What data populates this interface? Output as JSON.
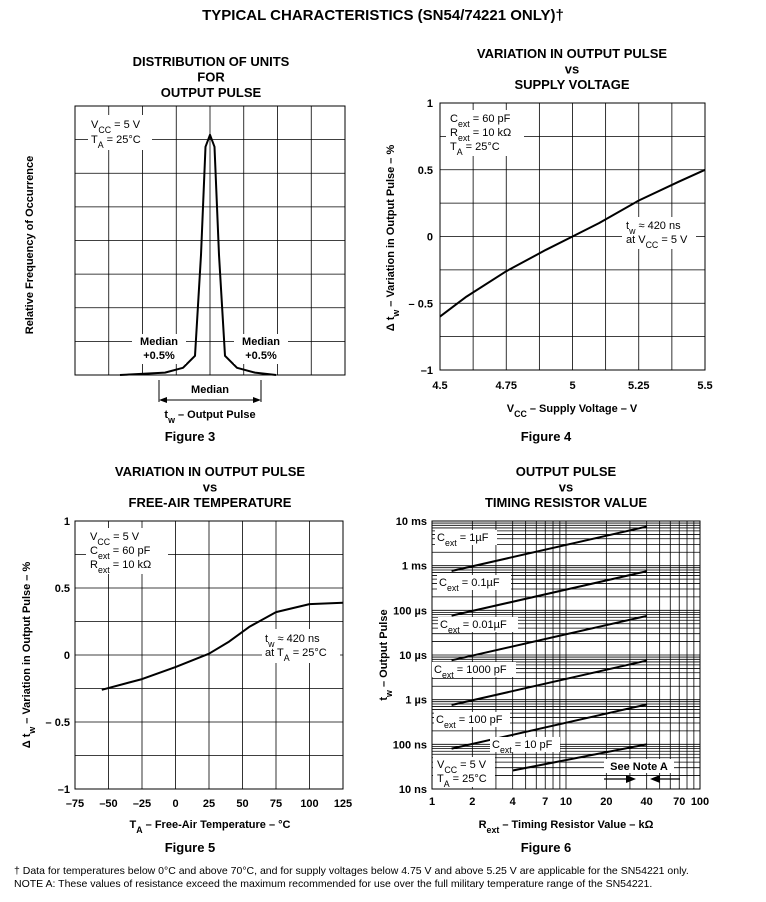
{
  "page": {
    "title": "TYPICAL CHARACTERISTICS (SN54/74221 ONLY)†",
    "footnote_dagger": "† Data for temperatures below 0°C and above 70°C, and for supply voltages below 4.75 V and above 5.25 V are applicable for the SN54221 only.",
    "note_a": "NOTE A:   These values of resistance exceed the maximum recommended for use over the full military temperature range of the SN54221."
  },
  "chart_data": [
    {
      "id": "fig3",
      "type": "line",
      "title_lines": [
        "DISTRIBUTION OF UNITS",
        "FOR",
        "OUTPUT PULSE"
      ],
      "figure_label": "Figure 3",
      "ylabel": "Relative Frequency of Occurrence",
      "xlabel": "tw – Output Pulse",
      "conditions": [
        "VCC = 5 V",
        "TA = 25°C"
      ],
      "annotations": {
        "median_left": [
          "Median",
          "+0.5%"
        ],
        "median_right": [
          "Median",
          "+0.5%"
        ],
        "median_center": "Median"
      },
      "x": [
        -3.0,
        -1.5,
        -0.9,
        -0.5,
        -0.3,
        -0.15,
        0,
        0.15,
        0.3,
        0.5,
        0.9,
        1.5,
        2.2
      ],
      "y": [
        0.0,
        0.01,
        0.03,
        0.08,
        0.5,
        0.95,
        1.0,
        0.95,
        0.5,
        0.08,
        0.03,
        0.01,
        0.0
      ],
      "xlim": [
        -3.0,
        3.0
      ],
      "ylim": [
        0,
        1.12
      ],
      "grid": true
    },
    {
      "id": "fig4",
      "type": "line",
      "title_lines": [
        "VARIATION IN OUTPUT PULSE",
        "vs",
        "SUPPLY VOLTAGE"
      ],
      "figure_label": "Figure 4",
      "ylabel": "Δ tw – Variation in Output Pulse – %",
      "xlabel": "VCC – Supply Voltage – V",
      "conditions": [
        "Cext = 60 pF",
        "Rext = 10 kΩ",
        "TA = 25°C"
      ],
      "annotation": [
        "tw ≈ 420 ns",
        "at VCC = 5 V"
      ],
      "x": [
        4.5,
        4.6,
        4.75,
        4.9,
        5.0,
        5.1,
        5.25,
        5.4,
        5.5
      ],
      "y": [
        -0.6,
        -0.45,
        -0.26,
        -0.1,
        0.0,
        0.1,
        0.27,
        0.41,
        0.5
      ],
      "xticks": [
        4.5,
        4.75,
        5,
        5.25,
        5.5
      ],
      "xtick_labels": [
        "4.5",
        "4.75",
        "5",
        "5.25",
        "5.5"
      ],
      "yticks": [
        -1,
        -0.5,
        0,
        0.5,
        1
      ],
      "ytick_labels": [
        "–1",
        "– 0.5",
        "0",
        "0.5",
        "1"
      ],
      "xlim": [
        4.5,
        5.5
      ],
      "ylim": [
        -1,
        1
      ],
      "grid": true
    },
    {
      "id": "fig5",
      "type": "line",
      "title_lines": [
        "VARIATION IN OUTPUT PULSE",
        "vs",
        "FREE-AIR TEMPERATURE"
      ],
      "figure_label": "Figure 5",
      "ylabel": "Δ tw – Variation in Output Pulse – %",
      "xlabel": "TA – Free-Air Temperature – °C",
      "conditions": [
        "VCC = 5 V",
        "Cext = 60 pF",
        "Rext = 10 kΩ"
      ],
      "annotation": [
        "tw ≈ 420 ns",
        "at TA = 25°C"
      ],
      "x": [
        -55,
        -25,
        0,
        25,
        40,
        55,
        75,
        100,
        125
      ],
      "y": [
        -0.26,
        -0.18,
        -0.09,
        0.01,
        0.1,
        0.21,
        0.32,
        0.38,
        0.39
      ],
      "xticks": [
        -75,
        -50,
        -25,
        0,
        25,
        50,
        75,
        100,
        125
      ],
      "xtick_labels": [
        "–75",
        "–50",
        "–25",
        "0",
        "25",
        "50",
        "75",
        "100",
        "125"
      ],
      "yticks": [
        -1,
        -0.5,
        0,
        0.5,
        1
      ],
      "ytick_labels": [
        "–1",
        "– 0.5",
        "0",
        "0.5",
        "1"
      ],
      "xlim": [
        -75,
        125
      ],
      "ylim": [
        -1,
        1
      ],
      "grid": true
    },
    {
      "id": "fig6",
      "type": "line",
      "scale": "log-log",
      "title_lines": [
        "OUTPUT PULSE",
        "vs",
        "TIMING RESISTOR VALUE"
      ],
      "figure_label": "Figure 6",
      "ylabel": "tw – Output Pulse",
      "xlabel": "Rext – Timing Resistor Value – kΩ",
      "conditions": [
        "VCC = 5 V",
        "TA = 25°C"
      ],
      "note": "See Note A",
      "xlim": [
        1,
        100
      ],
      "ylim": [
        1e-08,
        0.01
      ],
      "xticks": [
        1,
        2,
        4,
        7,
        10,
        20,
        40,
        70,
        100
      ],
      "xtick_labels": [
        "1",
        "2",
        "4",
        "7",
        "10",
        "20",
        "40",
        "70",
        "100"
      ],
      "yticks": [
        1e-08,
        1e-07,
        1e-06,
        1e-05,
        0.0001,
        0.001,
        0.01
      ],
      "ytick_labels": [
        "10 ns",
        "100 ns",
        "1 µs",
        "10 µs",
        "100 µs",
        "1 ms",
        "10 ms"
      ],
      "series": [
        {
          "name": "Cext = 1µF",
          "x": [
            1.4,
            40
          ],
          "y": [
            0.00076,
            0.0075
          ]
        },
        {
          "name": "Cext = 0.1µF",
          "x": [
            1.4,
            40
          ],
          "y": [
            7.6e-05,
            0.00075
          ]
        },
        {
          "name": "Cext = 0.01µF",
          "x": [
            1.4,
            40
          ],
          "y": [
            7.6e-06,
            7.5e-05
          ]
        },
        {
          "name": "Cext = 1000 pF",
          "x": [
            1.4,
            40
          ],
          "y": [
            7.6e-07,
            7.5e-06
          ]
        },
        {
          "name": "Cext = 100 pF",
          "x": [
            1.4,
            40
          ],
          "y": [
            8e-08,
            7.8e-07
          ]
        },
        {
          "name": "Cext = 10 pF",
          "x": [
            4,
            40
          ],
          "y": [
            2.6e-08,
            1e-07
          ]
        }
      ],
      "grid": true
    }
  ]
}
